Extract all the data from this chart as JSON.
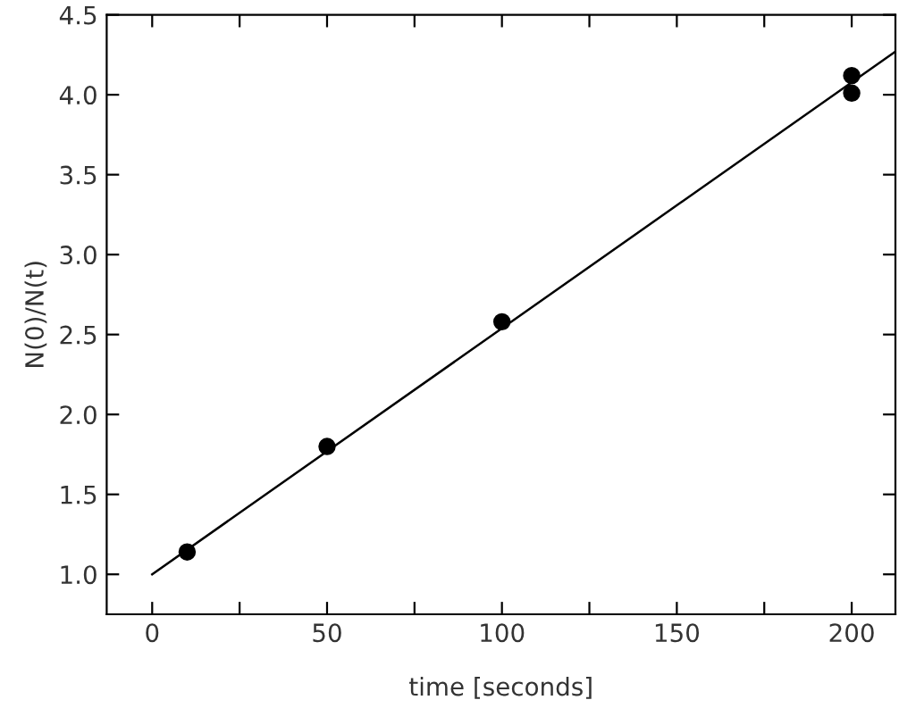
{
  "chart_data": {
    "type": "scatter",
    "xlabel": "time [seconds]",
    "ylabel": "N(0)/N(t)",
    "xlim": [
      -13,
      212.5
    ],
    "ylim": [
      0.75,
      4.5
    ],
    "xticks": [
      0,
      {
        "value": 25,
        "label": null
      },
      50,
      {
        "value": 75,
        "label": null
      },
      100,
      {
        "value": 125,
        "label": null
      },
      150,
      {
        "value": 175,
        "label": null
      },
      200
    ],
    "yticks": [
      {
        "value": 1,
        "label": "1.0"
      },
      1.5,
      {
        "value": 2,
        "label": "2.0"
      },
      2.5,
      {
        "value": 3,
        "label": "3.0"
      },
      3.5,
      {
        "value": 4,
        "label": "4.0"
      },
      4.5
    ],
    "grid": false,
    "series": [
      {
        "color": "#000000",
        "marker": "circle",
        "x": [
          10,
          50,
          100,
          200,
          200
        ],
        "values": [
          1.14,
          1.8,
          2.58,
          4.12,
          4.01
        ]
      },
      {
        "type": "line",
        "color": "#000000",
        "marker": "none",
        "x": [
          0,
          212.5
        ],
        "values": [
          1.0,
          4.27
        ]
      }
    ]
  }
}
